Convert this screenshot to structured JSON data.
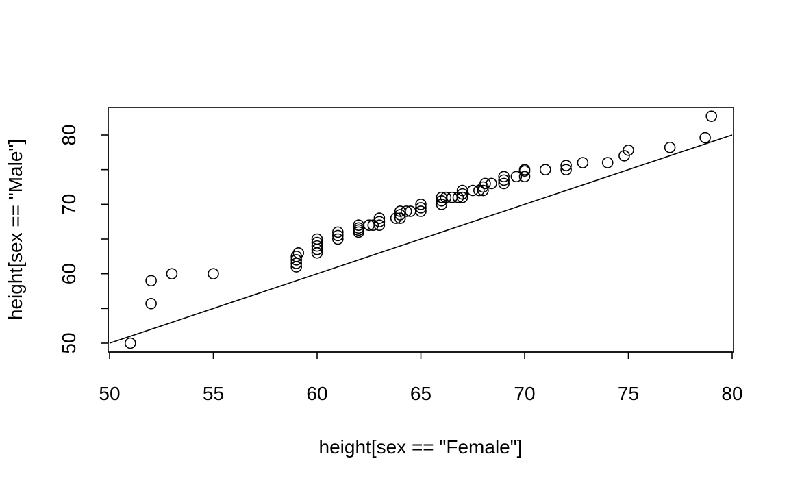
{
  "chart_data": {
    "type": "scatter",
    "title": "",
    "xlabel": "height[sex == \"Female\"]",
    "ylabel": "height[sex == \"Male\"]",
    "xlim": [
      50,
      80
    ],
    "ylim": [
      49.5,
      84.5
    ],
    "x_ticks": [
      50,
      55,
      60,
      65,
      70,
      75,
      80
    ],
    "x_tick_labels": [
      "50",
      "55",
      "60",
      "65",
      "70",
      "75",
      "80"
    ],
    "y_ticks": [
      50,
      55,
      60,
      65,
      70,
      75,
      80
    ],
    "y_tick_labels": [
      "50",
      "",
      "60",
      "",
      "70",
      "",
      "80"
    ],
    "grid": false,
    "legend": "none",
    "reference_line": {
      "label": "y = x",
      "from": [
        50,
        50
      ],
      "to": [
        80,
        80
      ]
    },
    "colors": {
      "points": "#000000",
      "line": "#000000",
      "frame": "#000000"
    },
    "points": [
      [
        51,
        50
      ],
      [
        52,
        55.7
      ],
      [
        52,
        59
      ],
      [
        53,
        60
      ],
      [
        55,
        60
      ],
      [
        59,
        61
      ],
      [
        59,
        61.5
      ],
      [
        59,
        62
      ],
      [
        59,
        62.5
      ],
      [
        59.1,
        63
      ],
      [
        60,
        63
      ],
      [
        60,
        63.5
      ],
      [
        60,
        64
      ],
      [
        60,
        64.5
      ],
      [
        60,
        65
      ],
      [
        61,
        65
      ],
      [
        61,
        65.5
      ],
      [
        61,
        66
      ],
      [
        62,
        66
      ],
      [
        62,
        66.3
      ],
      [
        62,
        66.6
      ],
      [
        62,
        67
      ],
      [
        62.5,
        67
      ],
      [
        62.7,
        67
      ],
      [
        63,
        67
      ],
      [
        63,
        67.5
      ],
      [
        63,
        68
      ],
      [
        63.8,
        68
      ],
      [
        64,
        68
      ],
      [
        64,
        68.5
      ],
      [
        64,
        69
      ],
      [
        64.3,
        69
      ],
      [
        64.5,
        69
      ],
      [
        65,
        69
      ],
      [
        65,
        69.5
      ],
      [
        65,
        70
      ],
      [
        66,
        70
      ],
      [
        66,
        70.5
      ],
      [
        66,
        71
      ],
      [
        66.2,
        71
      ],
      [
        66.5,
        71
      ],
      [
        66.8,
        71
      ],
      [
        67,
        71
      ],
      [
        67,
        71.5
      ],
      [
        67,
        72
      ],
      [
        67.5,
        72
      ],
      [
        67.8,
        72
      ],
      [
        68,
        72
      ],
      [
        68,
        72.5
      ],
      [
        68.1,
        73
      ],
      [
        68.4,
        73
      ],
      [
        69,
        73
      ],
      [
        69,
        73.5
      ],
      [
        69,
        74
      ],
      [
        69.6,
        74
      ],
      [
        70,
        74
      ],
      [
        70,
        74.8
      ],
      [
        70,
        75
      ],
      [
        71,
        75
      ],
      [
        72,
        75
      ],
      [
        72,
        75.6
      ],
      [
        72.8,
        76
      ],
      [
        74,
        76
      ],
      [
        74.8,
        77
      ],
      [
        75,
        77.8
      ],
      [
        77,
        78.2
      ],
      [
        78.7,
        79.6
      ],
      [
        79,
        82.7
      ]
    ]
  }
}
